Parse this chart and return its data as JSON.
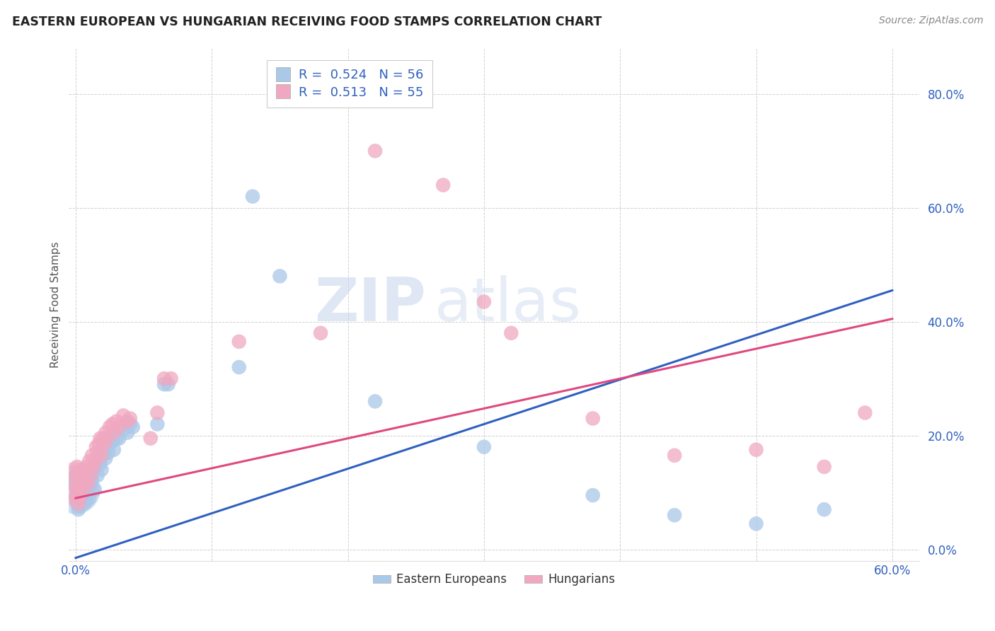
{
  "title": "EASTERN EUROPEAN VS HUNGARIAN RECEIVING FOOD STAMPS CORRELATION CHART",
  "source_text": "Source: ZipAtlas.com",
  "ylabel": "Receiving Food Stamps",
  "xlim": [
    -0.005,
    0.62
  ],
  "ylim": [
    -0.02,
    0.88
  ],
  "yticks": [
    0.0,
    0.2,
    0.4,
    0.6,
    0.8
  ],
  "ytick_labels": [
    "0.0%",
    "20.0%",
    "40.0%",
    "60.0%",
    "80.0%"
  ],
  "xtick_left_label": "0.0%",
  "xtick_right_label": "60.0%",
  "grid_color": "#d0d0d0",
  "background_color": "#ffffff",
  "watermark_zip": "ZIP",
  "watermark_atlas": "atlas",
  "blue_color": "#aac8e8",
  "pink_color": "#f0a8c0",
  "blue_line_color": "#3060c0",
  "pink_line_color": "#e04880",
  "legend_r_blue": "R =  0.524",
  "legend_n_blue": "N = 56",
  "legend_r_pink": "R =  0.513",
  "legend_n_pink": "N = 55",
  "blue_line": [
    [
      0.0,
      -0.015
    ],
    [
      0.6,
      0.455
    ]
  ],
  "pink_line": [
    [
      0.0,
      0.09
    ],
    [
      0.6,
      0.405
    ]
  ],
  "blue_scatter": [
    [
      0.001,
      0.13
    ],
    [
      0.001,
      0.1
    ],
    [
      0.001,
      0.08
    ],
    [
      0.002,
      0.12
    ],
    [
      0.002,
      0.09
    ],
    [
      0.002,
      0.07
    ],
    [
      0.003,
      0.11
    ],
    [
      0.003,
      0.075
    ],
    [
      0.004,
      0.1
    ],
    [
      0.004,
      0.085
    ],
    [
      0.005,
      0.115
    ],
    [
      0.005,
      0.09
    ],
    [
      0.006,
      0.105
    ],
    [
      0.006,
      0.08
    ],
    [
      0.007,
      0.095
    ],
    [
      0.008,
      0.12
    ],
    [
      0.008,
      0.085
    ],
    [
      0.009,
      0.1
    ],
    [
      0.01,
      0.13
    ],
    [
      0.01,
      0.09
    ],
    [
      0.011,
      0.115
    ],
    [
      0.012,
      0.125
    ],
    [
      0.013,
      0.14
    ],
    [
      0.014,
      0.105
    ],
    [
      0.015,
      0.145
    ],
    [
      0.016,
      0.13
    ],
    [
      0.017,
      0.155
    ],
    [
      0.018,
      0.15
    ],
    [
      0.019,
      0.14
    ],
    [
      0.02,
      0.165
    ],
    [
      0.021,
      0.175
    ],
    [
      0.022,
      0.16
    ],
    [
      0.023,
      0.18
    ],
    [
      0.024,
      0.17
    ],
    [
      0.025,
      0.185
    ],
    [
      0.027,
      0.19
    ],
    [
      0.028,
      0.175
    ],
    [
      0.03,
      0.195
    ],
    [
      0.032,
      0.195
    ],
    [
      0.035,
      0.21
    ],
    [
      0.038,
      0.205
    ],
    [
      0.04,
      0.22
    ],
    [
      0.042,
      0.215
    ],
    [
      0.06,
      0.22
    ],
    [
      0.065,
      0.29
    ],
    [
      0.068,
      0.29
    ],
    [
      0.12,
      0.32
    ],
    [
      0.13,
      0.62
    ],
    [
      0.15,
      0.48
    ],
    [
      0.22,
      0.26
    ],
    [
      0.3,
      0.18
    ],
    [
      0.38,
      0.095
    ],
    [
      0.44,
      0.06
    ],
    [
      0.5,
      0.045
    ],
    [
      0.55,
      0.07
    ],
    [
      0.0,
      0.12
    ]
  ],
  "pink_scatter": [
    [
      0.001,
      0.145
    ],
    [
      0.001,
      0.12
    ],
    [
      0.001,
      0.095
    ],
    [
      0.002,
      0.135
    ],
    [
      0.002,
      0.105
    ],
    [
      0.003,
      0.125
    ],
    [
      0.003,
      0.09
    ],
    [
      0.004,
      0.115
    ],
    [
      0.005,
      0.14
    ],
    [
      0.005,
      0.105
    ],
    [
      0.006,
      0.13
    ],
    [
      0.007,
      0.12
    ],
    [
      0.008,
      0.145
    ],
    [
      0.009,
      0.115
    ],
    [
      0.01,
      0.155
    ],
    [
      0.011,
      0.13
    ],
    [
      0.012,
      0.165
    ],
    [
      0.013,
      0.145
    ],
    [
      0.014,
      0.155
    ],
    [
      0.015,
      0.18
    ],
    [
      0.016,
      0.17
    ],
    [
      0.017,
      0.185
    ],
    [
      0.018,
      0.195
    ],
    [
      0.019,
      0.165
    ],
    [
      0.02,
      0.195
    ],
    [
      0.021,
      0.185
    ],
    [
      0.022,
      0.205
    ],
    [
      0.023,
      0.195
    ],
    [
      0.025,
      0.215
    ],
    [
      0.027,
      0.22
    ],
    [
      0.028,
      0.205
    ],
    [
      0.03,
      0.225
    ],
    [
      0.032,
      0.215
    ],
    [
      0.035,
      0.235
    ],
    [
      0.038,
      0.225
    ],
    [
      0.04,
      0.23
    ],
    [
      0.055,
      0.195
    ],
    [
      0.06,
      0.24
    ],
    [
      0.065,
      0.3
    ],
    [
      0.07,
      0.3
    ],
    [
      0.12,
      0.365
    ],
    [
      0.18,
      0.38
    ],
    [
      0.22,
      0.7
    ],
    [
      0.27,
      0.64
    ],
    [
      0.3,
      0.435
    ],
    [
      0.32,
      0.38
    ],
    [
      0.38,
      0.23
    ],
    [
      0.44,
      0.165
    ],
    [
      0.5,
      0.175
    ],
    [
      0.55,
      0.145
    ],
    [
      0.58,
      0.24
    ],
    [
      0.0,
      0.13
    ],
    [
      0.0,
      0.11
    ],
    [
      0.0,
      0.09
    ],
    [
      0.002,
      0.08
    ]
  ],
  "large_blue_blob": [
    0.0,
    0.105,
    2500
  ],
  "large_pink_blob": [
    0.0,
    0.115,
    2000
  ]
}
